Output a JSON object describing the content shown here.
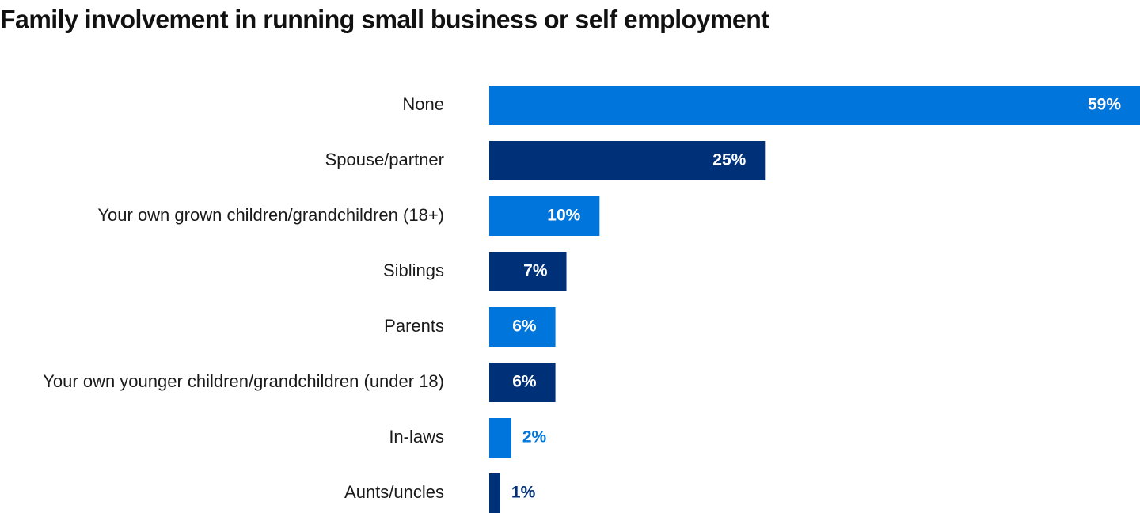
{
  "chart_data": {
    "type": "hbar",
    "title": "Family involvement in running small business or self employment",
    "categories": [
      "None",
      "Spouse/partner",
      "Your own grown children/grandchildren (18+)",
      "Siblings",
      "Parents",
      "Your own younger children/grandchildren (under 18)",
      "In-laws",
      "Aunts/uncles"
    ],
    "values": [
      59,
      25,
      10,
      7,
      6,
      6,
      2,
      1
    ],
    "value_labels": [
      "59%",
      "25%",
      "10%",
      "7%",
      "6%",
      "6%",
      "2%",
      "1%"
    ],
    "colors": [
      "#0075db",
      "#003078",
      "#0075db",
      "#003078",
      "#0075db",
      "#003078",
      "#0075db",
      "#003078"
    ]
  }
}
